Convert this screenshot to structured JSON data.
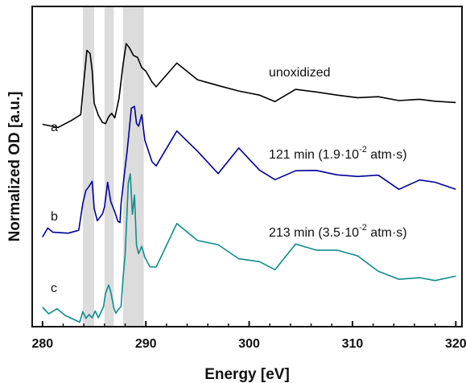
{
  "chart_data": {
    "type": "line",
    "title": "",
    "xlabel": "Energy [eV]",
    "ylabel": "Normalized OD [a.u.]",
    "xlim": [
      279,
      320.6
    ],
    "ylim": [
      0,
      10
    ],
    "y_ticks_shown": false,
    "x_ticks": [
      280,
      290,
      300,
      310,
      320
    ],
    "x_tick_labels": [
      "280",
      "290",
      "300",
      "310",
      "320"
    ],
    "grid": false,
    "legend": "none",
    "shaded_regions": [
      {
        "x0": 283.9,
        "x1": 285.0,
        "color": "#dcdcdc"
      },
      {
        "x0": 286.0,
        "x1": 286.9,
        "color": "#dcdcdc"
      },
      {
        "x0": 287.8,
        "x1": 289.8,
        "color": "#dcdcdc"
      }
    ],
    "series": [
      {
        "id": "a",
        "curve_label": "a",
        "annotation": {
          "text": "unoxidized"
        },
        "color": "#000000",
        "points": [
          [
            280.0,
            6.32
          ],
          [
            281.5,
            6.22
          ],
          [
            282.8,
            6.44
          ],
          [
            283.7,
            6.62
          ],
          [
            284.0,
            7.66
          ],
          [
            284.3,
            8.63
          ],
          [
            284.6,
            8.53
          ],
          [
            284.8,
            8.0
          ],
          [
            285.0,
            6.98
          ],
          [
            285.4,
            6.6
          ],
          [
            285.8,
            6.38
          ],
          [
            286.1,
            6.34
          ],
          [
            286.4,
            6.55
          ],
          [
            286.7,
            6.66
          ],
          [
            287.0,
            6.52
          ],
          [
            287.4,
            7.12
          ],
          [
            287.8,
            8.2
          ],
          [
            288.1,
            8.84
          ],
          [
            288.4,
            8.71
          ],
          [
            288.8,
            8.47
          ],
          [
            289.2,
            8.41
          ],
          [
            289.6,
            8.09
          ],
          [
            290.0,
            7.98
          ],
          [
            290.6,
            7.64
          ],
          [
            291.0,
            7.49
          ],
          [
            293.0,
            8.23
          ],
          [
            295.0,
            7.71
          ],
          [
            297.0,
            7.53
          ],
          [
            299.0,
            7.36
          ],
          [
            301.0,
            7.23
          ],
          [
            302.5,
            7.03
          ],
          [
            304.5,
            7.41
          ],
          [
            306.5,
            7.33
          ],
          [
            308.5,
            7.23
          ],
          [
            310.5,
            7.15
          ],
          [
            312.5,
            7.18
          ],
          [
            314.5,
            7.06
          ],
          [
            316.5,
            7.1
          ],
          [
            318.0,
            7.04
          ],
          [
            320.0,
            7.0
          ]
        ]
      },
      {
        "id": "b",
        "curve_label": "b",
        "annotation": {
          "prefix": "121 min (1.9·10",
          "exponent": "-2",
          "suffix": " atm·s)"
        },
        "color": "#000099",
        "points": [
          [
            280.0,
            2.8
          ],
          [
            280.5,
            3.08
          ],
          [
            281.0,
            2.95
          ],
          [
            282.5,
            2.92
          ],
          [
            283.5,
            3.01
          ],
          [
            283.9,
            3.85
          ],
          [
            284.2,
            4.25
          ],
          [
            284.5,
            4.38
          ],
          [
            284.8,
            4.54
          ],
          [
            285.0,
            3.69
          ],
          [
            285.3,
            3.31
          ],
          [
            285.8,
            3.52
          ],
          [
            286.0,
            3.74
          ],
          [
            286.3,
            4.51
          ],
          [
            286.6,
            3.91
          ],
          [
            287.0,
            3.58
          ],
          [
            287.3,
            3.29
          ],
          [
            287.5,
            3.25
          ],
          [
            287.6,
            3.83
          ],
          [
            287.9,
            4.69
          ],
          [
            288.2,
            5.51
          ],
          [
            288.6,
            6.82
          ],
          [
            288.9,
            6.88
          ],
          [
            289.1,
            6.35
          ],
          [
            289.3,
            6.26
          ],
          [
            289.6,
            6.62
          ],
          [
            289.9,
            5.83
          ],
          [
            290.6,
            5.15
          ],
          [
            291.0,
            5.02
          ],
          [
            293.0,
            6.11
          ],
          [
            295.0,
            5.48
          ],
          [
            297.0,
            4.78
          ],
          [
            299.0,
            5.58
          ],
          [
            301.0,
            4.89
          ],
          [
            302.5,
            4.59
          ],
          [
            304.5,
            4.87
          ],
          [
            306.5,
            4.88
          ],
          [
            308.5,
            4.74
          ],
          [
            310.5,
            4.69
          ],
          [
            312.5,
            4.73
          ],
          [
            314.5,
            4.29
          ],
          [
            316.5,
            4.58
          ],
          [
            318.0,
            4.51
          ],
          [
            320.0,
            4.29
          ]
        ]
      },
      {
        "id": "c",
        "curve_label": "c",
        "annotation": {
          "prefix": "213 min (3.5·10",
          "exponent": "-2",
          "suffix": " atm·s)"
        },
        "color": "#0e8c8c",
        "points": [
          [
            280.0,
            0.61
          ],
          [
            280.6,
            0.4
          ],
          [
            281.4,
            0.56
          ],
          [
            282.2,
            0.35
          ],
          [
            283.6,
            0.14
          ],
          [
            283.9,
            0.47
          ],
          [
            284.2,
            0.26
          ],
          [
            284.5,
            0.38
          ],
          [
            284.8,
            0.28
          ],
          [
            285.1,
            0.49
          ],
          [
            285.4,
            0.28
          ],
          [
            285.9,
            0.62
          ],
          [
            286.1,
            1.04
          ],
          [
            286.4,
            1.3
          ],
          [
            286.6,
            1.09
          ],
          [
            286.9,
            0.59
          ],
          [
            287.1,
            0.42
          ],
          [
            287.3,
            0.52
          ],
          [
            287.6,
            0.63
          ],
          [
            287.8,
            1.55
          ],
          [
            288.0,
            2.25
          ],
          [
            288.3,
            4.49
          ],
          [
            288.5,
            4.77
          ],
          [
            288.7,
            3.51
          ],
          [
            288.9,
            4.11
          ],
          [
            289.1,
            2.54
          ],
          [
            289.3,
            2.28
          ],
          [
            289.6,
            2.51
          ],
          [
            289.9,
            2.17
          ],
          [
            290.4,
            1.87
          ],
          [
            291.0,
            1.86
          ],
          [
            293.0,
            3.22
          ],
          [
            295.0,
            2.69
          ],
          [
            297.0,
            2.56
          ],
          [
            299.0,
            2.12
          ],
          [
            301.0,
            2.03
          ],
          [
            302.5,
            1.78
          ],
          [
            304.5,
            2.58
          ],
          [
            306.5,
            2.39
          ],
          [
            308.5,
            2.39
          ],
          [
            310.5,
            2.21
          ],
          [
            312.5,
            1.73
          ],
          [
            314.5,
            1.48
          ],
          [
            316.5,
            1.53
          ],
          [
            318.0,
            1.44
          ],
          [
            320.0,
            1.58
          ]
        ]
      }
    ]
  }
}
